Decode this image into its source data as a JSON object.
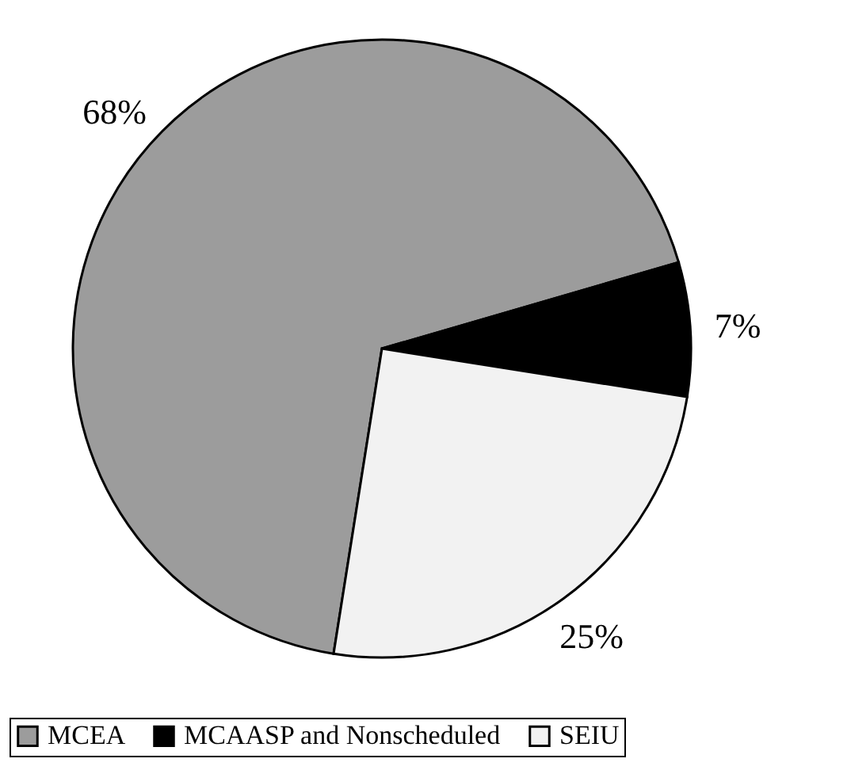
{
  "chart_data": {
    "type": "pie",
    "categories": [
      "MCEA",
      "MCAASP and Nonscheduled",
      "SEIU"
    ],
    "values": [
      68,
      7,
      25
    ],
    "colors": [
      "#9c9c9c",
      "#000000",
      "#f2f2f2"
    ],
    "value_labels": [
      "68%",
      "7%",
      "25%"
    ],
    "legend": "bottom"
  }
}
